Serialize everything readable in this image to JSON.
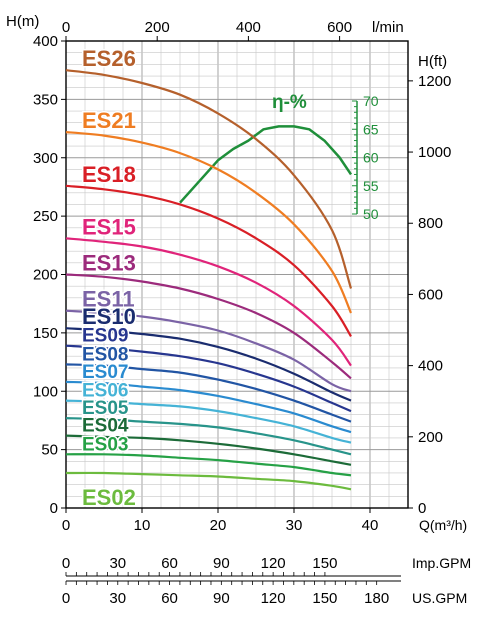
{
  "chart_data": {
    "type": "line",
    "axis_labels": {
      "y_left": "H(m)",
      "y_right": "H(ft)",
      "x_bottom": "Q(m³/h)",
      "x_top_unit": "l/min",
      "imp_gpm": "Imp.GPM",
      "us_gpm": "US.GPM"
    },
    "efficiency_label": "η-%",
    "x_ticks": [
      "0",
      "10",
      "20",
      "30",
      "40"
    ],
    "y_ticks": [
      "0",
      "50",
      "100",
      "150",
      "200",
      "250",
      "300",
      "350",
      "400"
    ],
    "top_ticks": [
      "0",
      "200",
      "400",
      "600"
    ],
    "right_ticks": [
      "0",
      "200",
      "400",
      "600",
      "800",
      "1000",
      "1200"
    ],
    "eff_ticks": [
      "50",
      "55",
      "60",
      "65",
      "70"
    ],
    "imp_ticks": [
      "0",
      "30",
      "60",
      "90",
      "120",
      "150"
    ],
    "us_ticks": [
      "0",
      "30",
      "60",
      "90",
      "120",
      "150",
      "180"
    ],
    "xlim": [
      0,
      45
    ],
    "ylim": [
      0,
      400
    ],
    "ylim_ft": [
      0,
      1312
    ],
    "eff_lim": [
      50,
      70
    ],
    "series": [
      {
        "name": "ES26",
        "color": "#b5602c",
        "points": [
          [
            0,
            375
          ],
          [
            5,
            371
          ],
          [
            10,
            364
          ],
          [
            15,
            354
          ],
          [
            20,
            338
          ],
          [
            25,
            316
          ],
          [
            30,
            285
          ],
          [
            35,
            238
          ],
          [
            37.5,
            188
          ]
        ]
      },
      {
        "name": "ES21",
        "color": "#ef7d22",
        "points": [
          [
            0,
            322
          ],
          [
            5,
            319
          ],
          [
            10,
            313
          ],
          [
            15,
            304
          ],
          [
            20,
            290
          ],
          [
            25,
            270
          ],
          [
            30,
            243
          ],
          [
            35,
            203
          ],
          [
            37.5,
            167
          ]
        ]
      },
      {
        "name": "ES18",
        "color": "#d91f26",
        "points": [
          [
            0,
            276
          ],
          [
            5,
            273
          ],
          [
            10,
            268
          ],
          [
            15,
            260
          ],
          [
            20,
            248
          ],
          [
            25,
            231
          ],
          [
            30,
            208
          ],
          [
            35,
            173
          ],
          [
            37.5,
            147
          ]
        ]
      },
      {
        "name": "ES15",
        "color": "#e0247a",
        "points": [
          [
            0,
            231
          ],
          [
            5,
            228
          ],
          [
            10,
            224
          ],
          [
            15,
            217
          ],
          [
            20,
            207
          ],
          [
            25,
            193
          ],
          [
            30,
            173
          ],
          [
            35,
            144
          ],
          [
            37.5,
            122
          ]
        ]
      },
      {
        "name": "ES13",
        "color": "#9c2b7c",
        "points": [
          [
            0,
            200
          ],
          [
            5,
            198
          ],
          [
            10,
            194
          ],
          [
            15,
            188
          ],
          [
            20,
            179
          ],
          [
            25,
            167
          ],
          [
            30,
            150
          ],
          [
            35,
            125
          ],
          [
            37.5,
            111
          ]
        ]
      },
      {
        "name": "ES11",
        "color": "#7b63a6",
        "points": [
          [
            0,
            169
          ],
          [
            5,
            167
          ],
          [
            10,
            164
          ],
          [
            15,
            159
          ],
          [
            20,
            152
          ],
          [
            25,
            141
          ],
          [
            30,
            127
          ],
          [
            35,
            106
          ],
          [
            37.5,
            100
          ]
        ]
      },
      {
        "name": "ES10",
        "color": "#1a2c6f",
        "points": [
          [
            0,
            154
          ],
          [
            5,
            152
          ],
          [
            10,
            149
          ],
          [
            15,
            145
          ],
          [
            20,
            138
          ],
          [
            25,
            128
          ],
          [
            30,
            115
          ],
          [
            35,
            99
          ],
          [
            37.5,
            92
          ]
        ]
      },
      {
        "name": "ES09",
        "color": "#27368f",
        "points": [
          [
            0,
            139
          ],
          [
            5,
            137
          ],
          [
            10,
            134
          ],
          [
            15,
            130
          ],
          [
            20,
            124
          ],
          [
            25,
            115
          ],
          [
            30,
            104
          ],
          [
            35,
            90
          ],
          [
            37.5,
            83
          ]
        ]
      },
      {
        "name": "ES08",
        "color": "#2255a4",
        "points": [
          [
            0,
            123
          ],
          [
            5,
            122
          ],
          [
            10,
            119
          ],
          [
            15,
            116
          ],
          [
            20,
            110
          ],
          [
            25,
            102
          ],
          [
            30,
            92
          ],
          [
            35,
            80
          ],
          [
            37.5,
            74
          ]
        ]
      },
      {
        "name": "ES07",
        "color": "#2a8bd0",
        "points": [
          [
            0,
            108
          ],
          [
            5,
            107
          ],
          [
            10,
            104
          ],
          [
            15,
            101
          ],
          [
            20,
            96
          ],
          [
            25,
            89
          ],
          [
            30,
            81
          ],
          [
            35,
            70
          ],
          [
            37.5,
            65
          ]
        ]
      },
      {
        "name": "ES06",
        "color": "#45b3d6",
        "points": [
          [
            0,
            92
          ],
          [
            5,
            91
          ],
          [
            10,
            89
          ],
          [
            15,
            87
          ],
          [
            20,
            83
          ],
          [
            25,
            77
          ],
          [
            30,
            70
          ],
          [
            35,
            60
          ],
          [
            37.5,
            56
          ]
        ]
      },
      {
        "name": "ES05",
        "color": "#28948a",
        "points": [
          [
            0,
            77
          ],
          [
            5,
            76
          ],
          [
            10,
            74
          ],
          [
            15,
            72
          ],
          [
            20,
            69
          ],
          [
            25,
            64
          ],
          [
            30,
            58
          ],
          [
            35,
            50
          ],
          [
            37.5,
            46
          ]
        ]
      },
      {
        "name": "ES04",
        "color": "#1c6b38",
        "points": [
          [
            0,
            62
          ],
          [
            5,
            61
          ],
          [
            10,
            60
          ],
          [
            15,
            58
          ],
          [
            20,
            55
          ],
          [
            25,
            51
          ],
          [
            30,
            46
          ],
          [
            35,
            40
          ],
          [
            37.5,
            37
          ]
        ]
      },
      {
        "name": "ES03",
        "color": "#26a146",
        "points": [
          [
            0,
            46
          ],
          [
            5,
            46
          ],
          [
            10,
            45
          ],
          [
            15,
            43
          ],
          [
            20,
            41
          ],
          [
            25,
            38
          ],
          [
            30,
            35
          ],
          [
            35,
            30
          ],
          [
            37.5,
            28
          ]
        ]
      },
      {
        "name": "ES02",
        "color": "#6cbb3e",
        "points": [
          [
            0,
            30
          ],
          [
            5,
            30
          ],
          [
            10,
            29
          ],
          [
            15,
            28
          ],
          [
            20,
            27
          ],
          [
            25,
            25
          ],
          [
            30,
            23
          ],
          [
            35,
            19
          ],
          [
            37.5,
            16
          ]
        ]
      }
    ],
    "efficiency_curve": {
      "color": "#1f8f3a",
      "points": [
        [
          15,
          52
        ],
        [
          18,
          56.5
        ],
        [
          20,
          59.5
        ],
        [
          22,
          61.5
        ],
        [
          24,
          63
        ],
        [
          26,
          65
        ],
        [
          28,
          65.5
        ],
        [
          30,
          65.5
        ],
        [
          32,
          65
        ],
        [
          34,
          63
        ],
        [
          36,
          60
        ],
        [
          37.5,
          57
        ]
      ]
    }
  }
}
